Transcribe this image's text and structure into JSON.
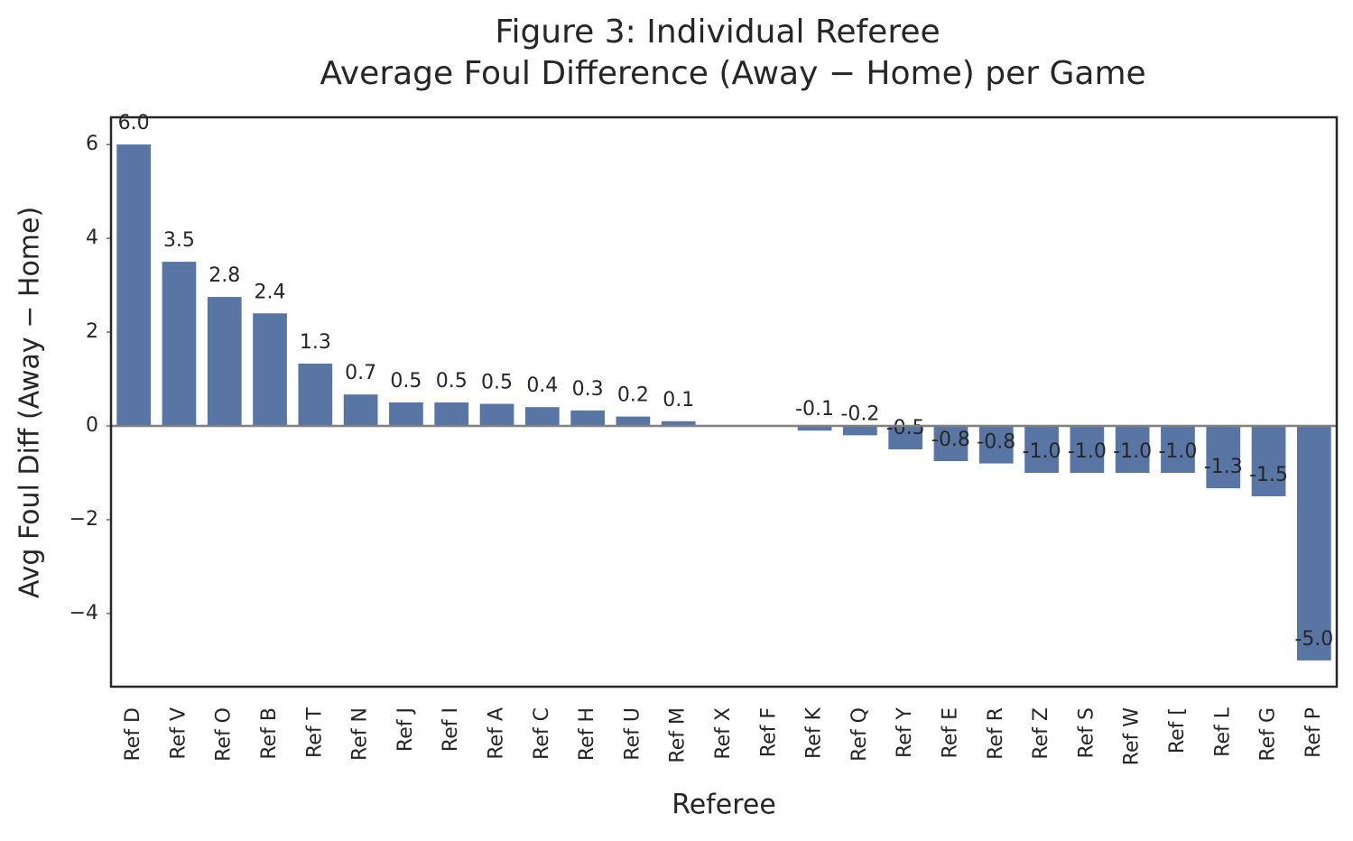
{
  "chart_data": {
    "type": "bar",
    "title": [
      "Figure 3: Individual Referee",
      "Average Foul Difference (Away − Home) per Game"
    ],
    "x_label": "Referee",
    "y_label": "Avg Foul Diff (Away − Home)",
    "categories": [
      "Ref D",
      "Ref V",
      "Ref O",
      "Ref B",
      "Ref T",
      "Ref N",
      "Ref J",
      "Ref I",
      "Ref A",
      "Ref C",
      "Ref H",
      "Ref U",
      "Ref M",
      "Ref X",
      "Ref F",
      "Ref K",
      "Ref Q",
      "Ref Y",
      "Ref E",
      "Ref R",
      "Ref Z",
      "Ref S",
      "Ref W",
      "Ref [",
      "Ref L",
      "Ref G",
      "Ref P"
    ],
    "values": [
      6,
      3.5,
      2.75,
      2.4,
      1.33,
      0.67,
      0.5,
      0.5,
      0.47,
      0.4,
      0.33,
      0.2,
      0.1,
      null,
      null,
      -0.1,
      -0.2,
      -0.5,
      -0.75,
      -0.8,
      -1,
      -1,
      -1,
      -1,
      -1.33,
      -1.5,
      -5
    ],
    "value_labels": [
      "6.0",
      "3.5",
      "2.8",
      "2.4",
      "1.3",
      "0.7",
      "0.5",
      "0.5",
      "0.5",
      "0.4",
      "0.3",
      "0.2",
      "0.1",
      null,
      null,
      "-0.1",
      "-0.2",
      "-0.5",
      "-0.8",
      "-0.8",
      "-1.0",
      "-1.0",
      "-1.0",
      "-1.0",
      "-1.3",
      "-1.5",
      "-5.0"
    ],
    "color": "#5875a4",
    "ylim": [
      -5.56,
      6.58
    ],
    "yticks": [
      {
        "value": -4,
        "label": "−4"
      },
      {
        "value": -2,
        "label": "−2"
      },
      0,
      2,
      4,
      6
    ],
    "grid": false
  }
}
